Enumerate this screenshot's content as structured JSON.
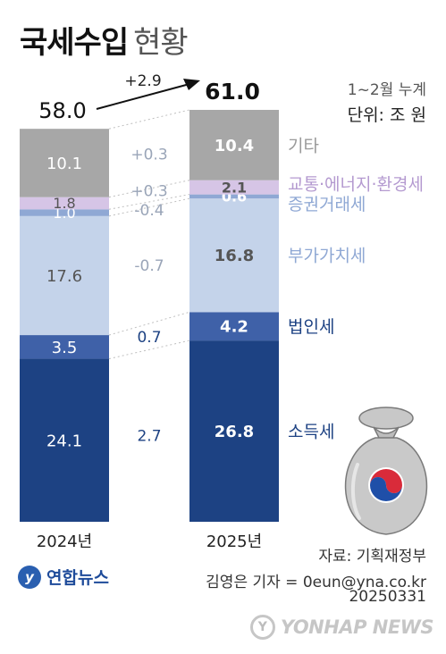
{
  "header": {
    "title_bold": "국세수입",
    "title_light": "현황"
  },
  "note": "1~2월 누계",
  "unit": "단위: 조 원",
  "source": "자료: 기획재정부",
  "byline": "김영은 기자 = 0eun@yna.co.kr",
  "date": "20250331",
  "logo": {
    "mark": "y",
    "text": "연합뉴스"
  },
  "watermark": {
    "mark": "Y",
    "text": "YONHAP NEWS"
  },
  "colors": {
    "소득세": "#1d4283",
    "법인세": "#3f61a8",
    "부가가치세": "#c4d3ea",
    "증권거래세": "#8fa8d4",
    "교통·에너지·환경세": "#d6c5e6",
    "기타": "#a7a7a7",
    "change_positive": "#1d4283",
    "change_muted": "#9aa5b8",
    "label_text": "#333333"
  },
  "chart_data": {
    "type": "bar",
    "stacked": true,
    "categories": [
      "2024년",
      "2025년"
    ],
    "totals": [
      58.0,
      61.0
    ],
    "total_labels": [
      "58.0",
      "61.0"
    ],
    "total_change_label": "+2.9",
    "series": [
      {
        "name": "소득세",
        "values": [
          24.1,
          26.8
        ],
        "labels": [
          "24.1",
          "26.8"
        ],
        "change": "2.7"
      },
      {
        "name": "법인세",
        "values": [
          3.5,
          4.2
        ],
        "labels": [
          "3.5",
          "4.2"
        ],
        "change": "0.7"
      },
      {
        "name": "부가가치세",
        "values": [
          17.6,
          16.8
        ],
        "labels": [
          "17.6",
          "16.8"
        ],
        "change": "-0.7"
      },
      {
        "name": "증권거래세",
        "values": [
          1.0,
          0.6
        ],
        "labels": [
          "1.0",
          "0.6"
        ],
        "change": "-0.4"
      },
      {
        "name": "교통·에너지·환경세",
        "values": [
          1.8,
          2.1
        ],
        "labels": [
          "1.8",
          "2.1"
        ],
        "change": "+0.3"
      },
      {
        "name": "기타",
        "values": [
          10.1,
          10.4
        ],
        "labels": [
          "10.1",
          "10.4"
        ],
        "change": "+0.3"
      }
    ]
  }
}
